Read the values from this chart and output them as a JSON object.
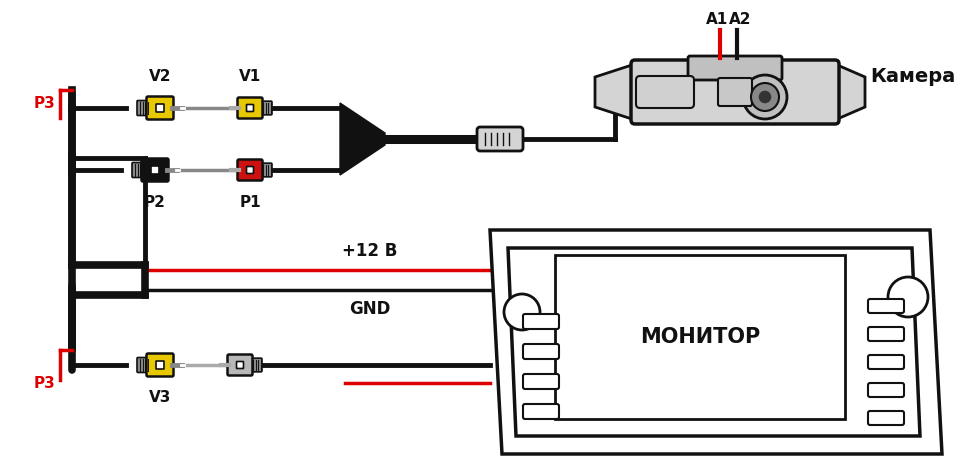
{
  "bg_color": "#ffffff",
  "line_color": "#111111",
  "red_color": "#dd0000",
  "yellow_color": "#e8c800",
  "gray_color": "#b8b8b8",
  "light_gray": "#d4d4d4",
  "dark_gray": "#444444",
  "labels": {
    "P3_top": "P3",
    "P3_bot": "P3",
    "V1": "V1",
    "V2": "V2",
    "V3": "V3",
    "P1": "P1",
    "P2": "P2",
    "A1": "A1",
    "A2": "A2",
    "camera": "Камера",
    "monitor": "МОНИТОР",
    "plus12": "+12 В",
    "gnd": "GND"
  },
  "figsize": [
    9.6,
    4.72
  ],
  "dpi": 100
}
